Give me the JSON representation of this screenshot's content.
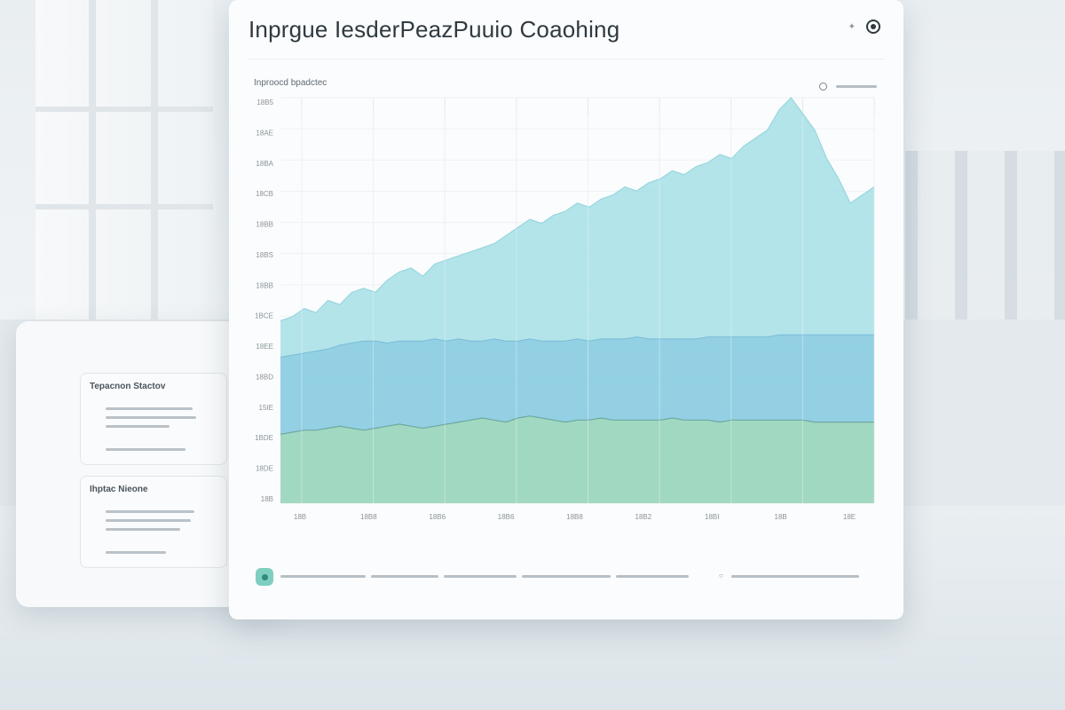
{
  "title": "Inprgue IesderPeazPuuio Coaohing",
  "chart": {
    "subtitle": "Inproocd bpadctec",
    "y_ticks": [
      "18B5",
      "18AE",
      "18BA",
      "18CB",
      "18BB",
      "18BS",
      "18BB",
      "1BCE",
      "18EE",
      "18BD",
      "15IE",
      "1BDE",
      "18DE",
      "18B"
    ],
    "x_ticks": [
      "18B",
      "18B8",
      "18B6",
      "18B6",
      "18B8",
      "18B2",
      "18BI",
      "18B",
      "18E"
    ]
  },
  "chart_data": {
    "type": "area",
    "title": "Inprgue IesderPeazPuuio Coaohing",
    "subtitle": "Inproocd bpadctec",
    "xlabel": "",
    "ylabel": "",
    "x": [
      0,
      2,
      4,
      6,
      8,
      10,
      12,
      14,
      16,
      18,
      20,
      22,
      24,
      26,
      28,
      30,
      32,
      34,
      36,
      38,
      40,
      42,
      44,
      46,
      48,
      50,
      52,
      54,
      56,
      58,
      60,
      62,
      64,
      66,
      68,
      70,
      72,
      74,
      76,
      78,
      80,
      82,
      84,
      86,
      88,
      90,
      92,
      94,
      96,
      98,
      100
    ],
    "series": [
      {
        "name": "",
        "color": "#a6dfe6",
        "values": [
          45,
          46,
          48,
          47,
          50,
          49,
          52,
          53,
          52,
          55,
          57,
          58,
          56,
          59,
          60,
          61,
          62,
          63,
          64,
          66,
          68,
          70,
          69,
          71,
          72,
          74,
          73,
          75,
          76,
          78,
          77,
          79,
          80,
          82,
          81,
          83,
          84,
          86,
          85,
          88,
          90,
          92,
          97,
          100,
          96,
          92,
          85,
          80,
          74,
          76,
          78
        ]
      },
      {
        "name": "",
        "color": "#8fcde3",
        "values": [
          36,
          36.5,
          37,
          37.5,
          38,
          39,
          39.5,
          40,
          40,
          39.5,
          40,
          40,
          40,
          40.5,
          40,
          40.5,
          40,
          40,
          40.5,
          40,
          40,
          40.5,
          40,
          40,
          40,
          40.5,
          40,
          40.5,
          40.5,
          40.5,
          41,
          40.5,
          40.5,
          40.5,
          40.5,
          40.5,
          41,
          41,
          41,
          41,
          41,
          41,
          41.5,
          41.5,
          41.5,
          41.5,
          41.5,
          41.5,
          41.5,
          41.5,
          41.5
        ]
      },
      {
        "name": "",
        "color": "#a3d8bd",
        "values": [
          17,
          17.5,
          18,
          18,
          18.5,
          19,
          18.5,
          18,
          18.5,
          19,
          19.5,
          19,
          18.5,
          19,
          19.5,
          20,
          20.5,
          21,
          20.5,
          20,
          21,
          21.5,
          21,
          20.5,
          20,
          20.5,
          20.5,
          21,
          20.5,
          20.5,
          20.5,
          20.5,
          20.5,
          21,
          20.5,
          20.5,
          20.5,
          20,
          20.5,
          20.5,
          20.5,
          20.5,
          20.5,
          20.5,
          20.5,
          20,
          20,
          20,
          20,
          20,
          20
        ]
      }
    ],
    "ylim": [
      0,
      100
    ],
    "grid": true,
    "legend": "none"
  },
  "side_cards": [
    {
      "title": "Tepacnon Stactov"
    },
    {
      "title": "Ihptac Nieone"
    }
  ],
  "colors": {
    "teal_area": "#a6dfe6",
    "blue_band": "#8fcde3",
    "green_band": "#a3d8bd",
    "badge": "#7fcfc0"
  }
}
